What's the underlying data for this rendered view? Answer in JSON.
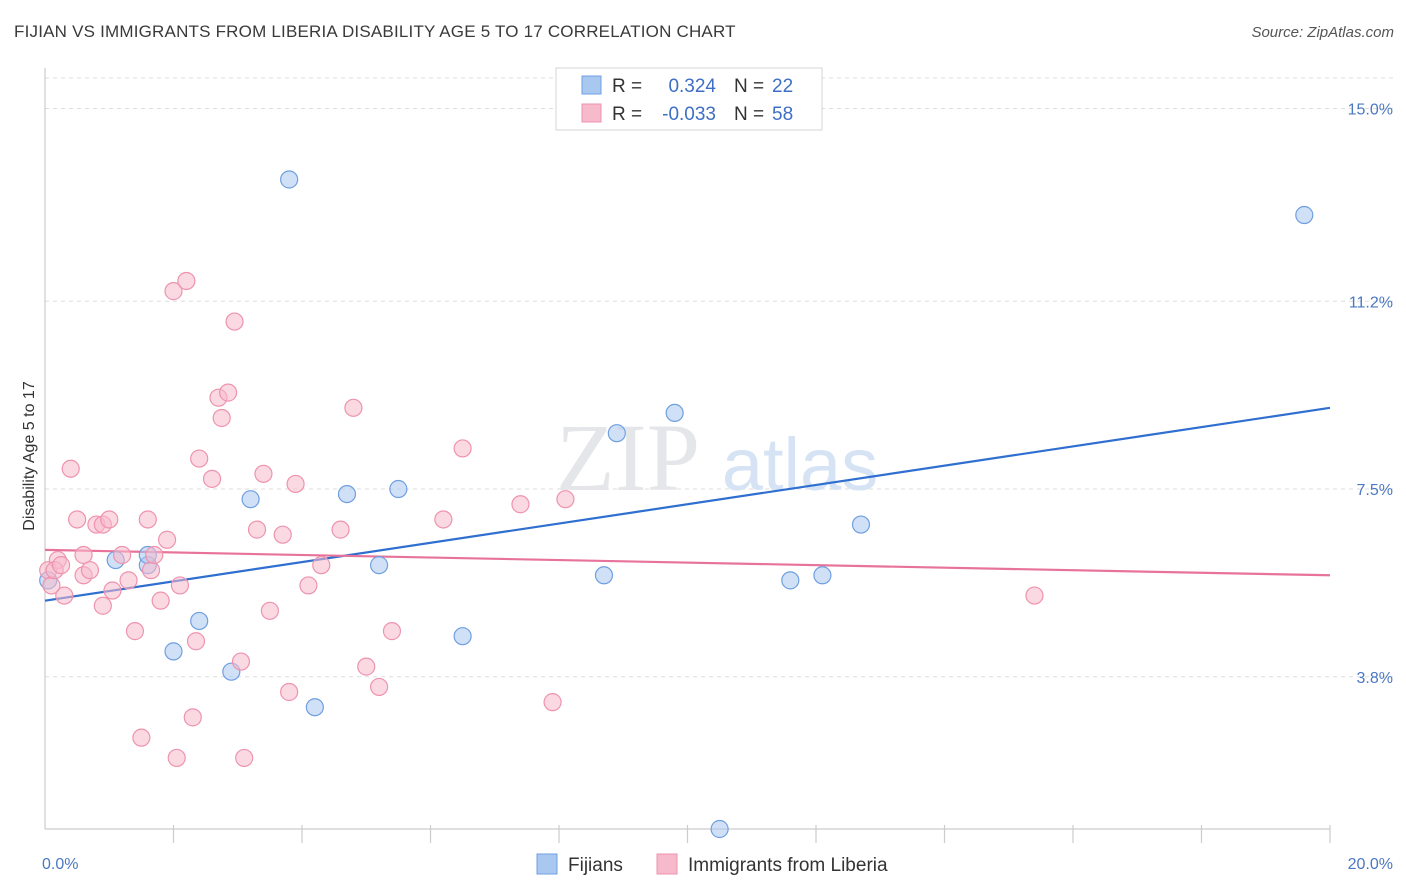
{
  "title": "FIJIAN VS IMMIGRANTS FROM LIBERIA DISABILITY AGE 5 TO 17 CORRELATION CHART",
  "source": "Source: ZipAtlas.com",
  "watermark": {
    "zip": "ZIP",
    "atlas": "atlas"
  },
  "legend": {
    "r_label": "R =",
    "n_label": "N =",
    "rows": [
      {
        "r": "0.324",
        "n": "22",
        "color": "#a9c8f0"
      },
      {
        "r": "-0.033",
        "n": "58",
        "color": "#f7b9cc"
      }
    ]
  },
  "bottom_legend": [
    {
      "name": "Fijians",
      "color": "#a9c8f0"
    },
    {
      "name": "Immigrants from Liberia",
      "color": "#f7b9cc"
    }
  ],
  "chart_data": {
    "type": "scatter",
    "title": "FIJIAN VS IMMIGRANTS FROM LIBERIA DISABILITY AGE 5 TO 17 CORRELATION CHART",
    "xlabel": "",
    "ylabel": "Disability Age 5 to 17",
    "xlim": [
      0,
      20
    ],
    "ylim": [
      0.8,
      15.6
    ],
    "x_tick_labels": [
      "0.0%",
      "20.0%"
    ],
    "y_ticks": [
      3.8,
      7.5,
      11.2,
      15.0
    ],
    "y_tick_labels": [
      "3.8%",
      "7.5%",
      "11.2%",
      "15.0%"
    ],
    "grid": true,
    "series": [
      {
        "name": "Fijians",
        "color": "#a9c8f0",
        "stroke": "#6f9fe0",
        "line_color": "#2f6fd0",
        "trend": {
          "x": [
            0,
            20
          ],
          "y": [
            5.3,
            9.1
          ]
        },
        "points": [
          [
            0.05,
            5.7
          ],
          [
            1.1,
            6.1
          ],
          [
            1.6,
            6.0
          ],
          [
            1.6,
            6.2
          ],
          [
            2.0,
            4.3
          ],
          [
            2.4,
            4.9
          ],
          [
            2.9,
            3.9
          ],
          [
            3.2,
            7.3
          ],
          [
            3.8,
            13.6
          ],
          [
            4.2,
            3.2
          ],
          [
            4.7,
            7.4
          ],
          [
            5.2,
            6.0
          ],
          [
            5.5,
            7.5
          ],
          [
            6.5,
            4.6
          ],
          [
            8.7,
            5.8
          ],
          [
            8.9,
            8.6
          ],
          [
            9.8,
            9.0
          ],
          [
            10.5,
            0.8
          ],
          [
            11.6,
            5.7
          ],
          [
            12.1,
            5.8
          ],
          [
            12.7,
            6.8
          ],
          [
            19.6,
            12.9
          ]
        ]
      },
      {
        "name": "Immigrants from Liberia",
        "color": "#f7b9cc",
        "stroke": "#ee93ae",
        "line_color": "#e8739a",
        "trend": {
          "x": [
            0,
            20
          ],
          "y": [
            6.3,
            5.8
          ]
        },
        "points": [
          [
            0.05,
            5.9
          ],
          [
            0.2,
            6.1
          ],
          [
            0.3,
            5.4
          ],
          [
            0.4,
            7.9
          ],
          [
            0.5,
            6.9
          ],
          [
            0.6,
            6.2
          ],
          [
            0.6,
            5.8
          ],
          [
            0.7,
            5.9
          ],
          [
            0.8,
            6.8
          ],
          [
            0.9,
            6.8
          ],
          [
            0.9,
            5.2
          ],
          [
            1.0,
            6.9
          ],
          [
            1.05,
            5.5
          ],
          [
            1.2,
            6.2
          ],
          [
            1.3,
            5.7
          ],
          [
            1.4,
            4.7
          ],
          [
            1.5,
            2.6
          ],
          [
            1.6,
            6.9
          ],
          [
            1.65,
            5.9
          ],
          [
            1.7,
            6.2
          ],
          [
            1.8,
            5.3
          ],
          [
            1.9,
            6.5
          ],
          [
            2.0,
            11.4
          ],
          [
            2.05,
            2.2
          ],
          [
            2.1,
            5.6
          ],
          [
            2.2,
            11.6
          ],
          [
            2.3,
            3.0
          ],
          [
            2.35,
            4.5
          ],
          [
            2.4,
            8.1
          ],
          [
            2.6,
            7.7
          ],
          [
            2.7,
            9.3
          ],
          [
            2.75,
            8.9
          ],
          [
            2.85,
            9.4
          ],
          [
            2.95,
            10.8
          ],
          [
            3.05,
            4.1
          ],
          [
            3.1,
            2.2
          ],
          [
            3.3,
            6.7
          ],
          [
            3.4,
            7.8
          ],
          [
            3.5,
            5.1
          ],
          [
            3.7,
            6.6
          ],
          [
            3.8,
            3.5
          ],
          [
            3.9,
            7.6
          ],
          [
            4.1,
            5.6
          ],
          [
            4.3,
            6.0
          ],
          [
            4.6,
            6.7
          ],
          [
            4.8,
            9.1
          ],
          [
            5.0,
            4.0
          ],
          [
            5.2,
            3.6
          ],
          [
            5.4,
            4.7
          ],
          [
            6.2,
            6.9
          ],
          [
            6.5,
            8.3
          ],
          [
            7.4,
            7.2
          ],
          [
            7.9,
            3.3
          ],
          [
            8.1,
            7.3
          ],
          [
            15.4,
            5.4
          ],
          [
            0.1,
            5.6
          ],
          [
            0.15,
            5.9
          ],
          [
            0.25,
            6.0
          ]
        ]
      }
    ]
  }
}
